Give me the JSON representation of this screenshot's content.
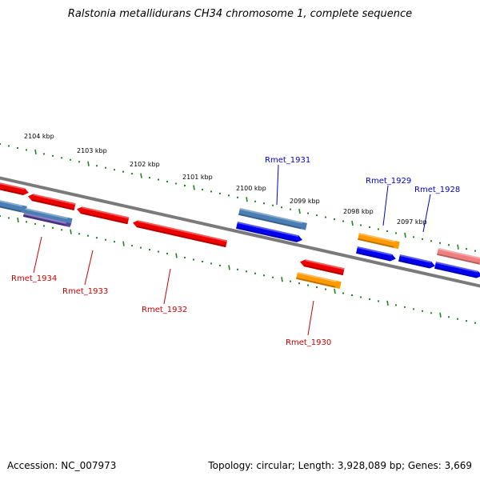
{
  "title": "Ralstonia metallidurans CH34 chromosome 1, complete sequence",
  "footer": {
    "accession": "Accession: NC_007973",
    "topology": "Topology: circular; Length: 3,928,089 bp; Genes: 3,669"
  },
  "colors": {
    "tick_green": "#1a8a1a",
    "backbone": "#7a7a7a",
    "label_forward": "#0000cc",
    "label_reverse": "#cc0000",
    "gene_red": "#ee0000",
    "gene_blue": "#0000ee",
    "gene_steelblue": "#4a7fb5",
    "gene_orange": "#ff9900",
    "gene_pink": "#f08080",
    "gene_purple": "#5a3fa0"
  },
  "ruler_labels": [
    "2104 kbp",
    "2103 kbp",
    "2102 kbp",
    "2101 kbp",
    "2100 kbp",
    "2099 kbp",
    "2098 kbp",
    "2097 kbp"
  ],
  "gene_labels": {
    "forward": [
      "Rmet_1931",
      "Rmet_1929",
      "Rmet_1928"
    ],
    "reverse": [
      "Rmet_1934",
      "Rmet_1933",
      "Rmet_1932",
      "Rmet_1930"
    ]
  }
}
